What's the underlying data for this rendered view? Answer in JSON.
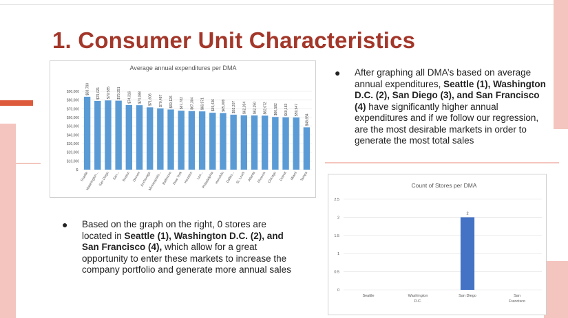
{
  "slide": {
    "title": "1. Consumer Unit Characteristics",
    "bullet_right": {
      "symbol": "●",
      "parts": [
        {
          "text": "After graphing all DMA’s based on average annual expenditures, ",
          "bold": false
        },
        {
          "text": "Seattle (1), Washington D.C. (2), San Diego (3), and San Francisco (4)",
          "bold": true
        },
        {
          "text": " have significantly higher annual expenditures and if we follow our regression, are the most desirable markets in order to generate the most total sales",
          "bold": false
        }
      ]
    },
    "bullet_left": {
      "symbol": "●",
      "parts": [
        {
          "text": "Based on the graph on the right, 0 stores are located in ",
          "bold": false
        },
        {
          "text": "Seattle (1), Washington D.C. (2), and San Francisco (4),",
          "bold": true
        },
        {
          "text": " which allow for a great opportunity to enter these markets to increase the company portfolio and generate more annual sales",
          "bold": false
        }
      ]
    },
    "colors": {
      "title": "#a3372a",
      "accent": "#f4c5be",
      "accent_dark": "#dd5a3c",
      "bar": "#5b9bd5",
      "bar2": "#4472c4"
    }
  },
  "chart_data": [
    {
      "type": "bar",
      "title": "Average annual expenditures per DMA",
      "xlabel": "",
      "ylabel": "",
      "categories": [
        "Seattle",
        "Washington...",
        "San Diego",
        "San...",
        "Boston",
        "Denver",
        "Anchorage",
        "Minneapolis...",
        "Baltimore",
        "New York",
        "Houston",
        "Los...",
        "Philadelphia",
        "Honolulu",
        "Dallas...",
        "St. Louis",
        "Atlanta",
        "Phoenix",
        "Chicago",
        "Detroit",
        "Miami",
        "Tampa"
      ],
      "values": [
        83790,
        79021,
        79585,
        79291,
        74316,
        74088,
        71606,
        70487,
        69126,
        67782,
        67304,
        66971,
        65436,
        65009,
        63207,
        62394,
        62250,
        62072,
        60582,
        60183,
        59947,
        48654
      ],
      "data_labels": [
        "$83,790",
        "$79,021",
        "$79,585",
        "$79,291",
        "$74,316",
        "$74,088",
        "$71,606",
        "$70,487",
        "$69,126",
        "$67,782",
        "$67,304",
        "$66,971",
        "$65,436",
        "$65,009",
        "$63,207",
        "$62,394",
        "$62,250",
        "$62,072",
        "$60,582",
        "$60,183",
        "$59,947",
        "$48,654"
      ],
      "yticks": [
        "$-",
        "$10,000",
        "$20,000",
        "$30,000",
        "$40,000",
        "$50,000",
        "$60,000",
        "$70,000",
        "$80,000",
        "$90,000"
      ],
      "ylim": [
        0,
        90000
      ],
      "grid": true,
      "legend": "none"
    },
    {
      "type": "bar",
      "title": "Count of Stores per DMA",
      "xlabel": "",
      "ylabel": "",
      "categories": [
        [
          "Seattle"
        ],
        [
          "Washington",
          "D.C."
        ],
        [
          "San Diego"
        ],
        [
          "San",
          "Francisco"
        ]
      ],
      "values": [
        0,
        0,
        2,
        0
      ],
      "data_labels": [
        "",
        "",
        "2",
        ""
      ],
      "yticks": [
        "0",
        "0.5",
        "1",
        "1.5",
        "2",
        "2.5"
      ],
      "ylim": [
        0,
        2.5
      ],
      "grid": true,
      "legend": "none"
    }
  ]
}
